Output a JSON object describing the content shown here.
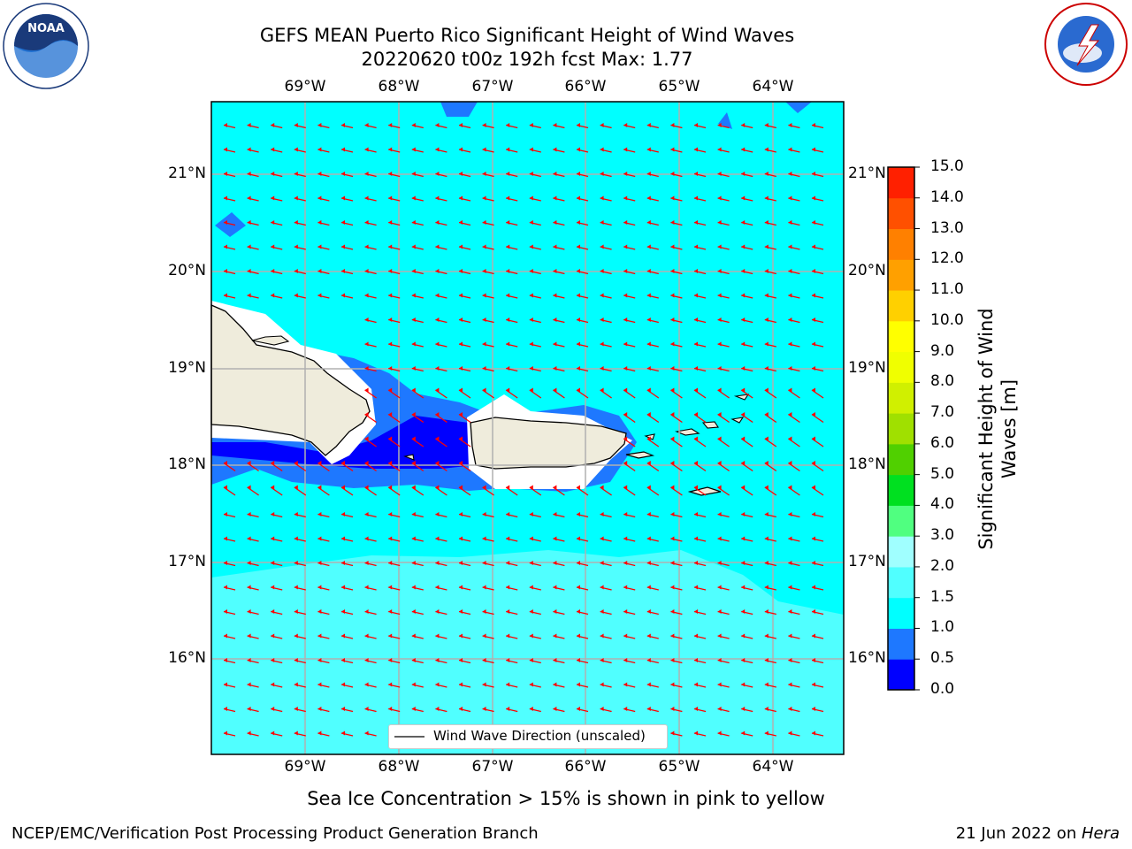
{
  "header": {
    "title_line1": "GEFS MEAN Puerto Rico Significant Height of Wind Waves",
    "title_line2": "20220620 t00z 192h fcst   Max: 1.77"
  },
  "logos": {
    "noaa_text": "NOAA",
    "noaa_ring_text": "NATIONAL OCEANIC AND ATMOSPHERIC ADMINISTRATION · U.S. DEPARTMENT OF COMMERCE",
    "nws_ring_text": "NATIONAL WEATHER SERVICE"
  },
  "map": {
    "lon_labels": [
      "69°W",
      "68°W",
      "67°W",
      "66°W",
      "65°W",
      "64°W"
    ],
    "lat_labels": [
      "21°N",
      "20°N",
      "19°N",
      "18°N",
      "17°N",
      "16°N"
    ],
    "legend_label": "Wind Wave Direction (unscaled)",
    "colors": {
      "land": "#efecdc",
      "coast": "#000000",
      "arrow": "#ff0000",
      "grid": "#b0b0b0"
    }
  },
  "colorbar": {
    "title": "Significant Height of Wind Waves [m]",
    "title_line1": "Significant Height of Wind",
    "title_line2": "Waves [m]",
    "levels": [
      "0.0",
      "0.5",
      "1.0",
      "1.5",
      "2.0",
      "3.0",
      "4.0",
      "5.0",
      "6.0",
      "7.0",
      "8.0",
      "9.0",
      "10.0",
      "11.0",
      "12.0",
      "13.0",
      "14.0",
      "15.0"
    ],
    "colors": [
      "#0000ff",
      "#1e78ff",
      "#00ffff",
      "#50ffff",
      "#a0ffff",
      "#50ff80",
      "#00e020",
      "#50d000",
      "#a0e000",
      "#d0f000",
      "#f0ff00",
      "#ffff00",
      "#ffd000",
      "#ffa000",
      "#ff8000",
      "#ff5000",
      "#ff2000"
    ]
  },
  "footer": {
    "sea_ice_note": "Sea Ice Concentration > 15% is shown in pink to yellow",
    "branch": "NCEP/EMC/Verification Post Processing Product Generation Branch",
    "date": "21 Jun 2022 on ",
    "machine": "Hera"
  }
}
